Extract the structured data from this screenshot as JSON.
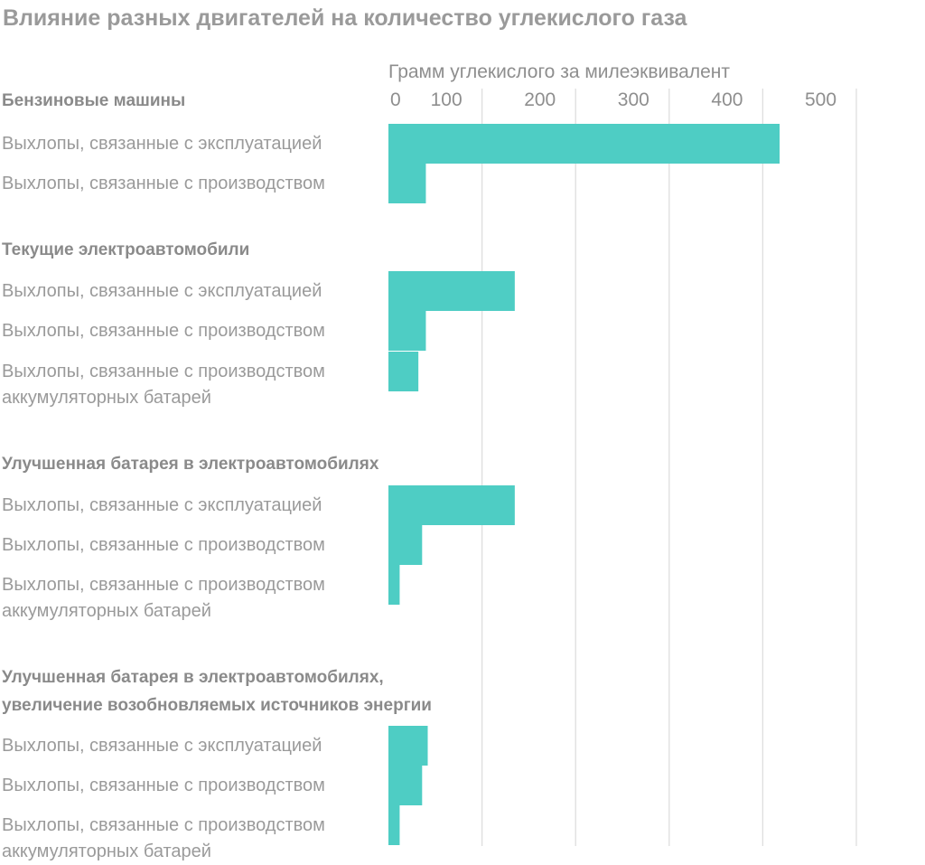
{
  "chart_data": {
    "type": "bar",
    "orientation": "horizontal",
    "title": "Влияние разных двигателей на количество углекислого газа",
    "xlabel": "Грамм углекислого за милеэквивалент",
    "xlim": [
      0,
      500
    ],
    "x_ticks": [
      "0",
      "100",
      "200",
      "300",
      "400",
      "500"
    ],
    "grid": true,
    "bar_color": "#4ecdc4",
    "groups": [
      {
        "title_lines": [
          "Бензиновые машины"
        ],
        "bars": [
          {
            "label_lines": [
              "Выхлопы, связанные с эксплуатацией"
            ],
            "value": 418
          },
          {
            "label_lines": [
              "Выхлопы, связанные с производством"
            ],
            "value": 40
          }
        ]
      },
      {
        "title_lines": [
          "Текущие электроавтомобили"
        ],
        "bars": [
          {
            "label_lines": [
              "Выхлопы, связанные с эксплуатацией"
            ],
            "value": 135
          },
          {
            "label_lines": [
              "Выхлопы, связанные с производством"
            ],
            "value": 40
          },
          {
            "label_lines": [
              "Выхлопы, связанные с производством",
              "аккумуляторных батарей"
            ],
            "value": 32
          }
        ]
      },
      {
        "title_lines": [
          "Улучшенная батарея в электроавтомобилях"
        ],
        "bars": [
          {
            "label_lines": [
              "Выхлопы, связанные с эксплуатацией"
            ],
            "value": 135
          },
          {
            "label_lines": [
              "Выхлопы, связанные с производством"
            ],
            "value": 36
          },
          {
            "label_lines": [
              "Выхлопы, связанные с производством",
              "аккумуляторных батарей"
            ],
            "value": 12
          }
        ]
      },
      {
        "title_lines": [
          "Улучшенная батарея в электроавтомобилях,",
          "увеличение возобновляемых источников энергии"
        ],
        "bars": [
          {
            "label_lines": [
              "Выхлопы, связанные с эксплуатацией"
            ],
            "value": 42
          },
          {
            "label_lines": [
              "Выхлопы, связанные с производством"
            ],
            "value": 36
          },
          {
            "label_lines": [
              "Выхлопы, связанные с производством",
              "аккумуляторных батарей"
            ],
            "value": 12
          }
        ]
      }
    ]
  }
}
